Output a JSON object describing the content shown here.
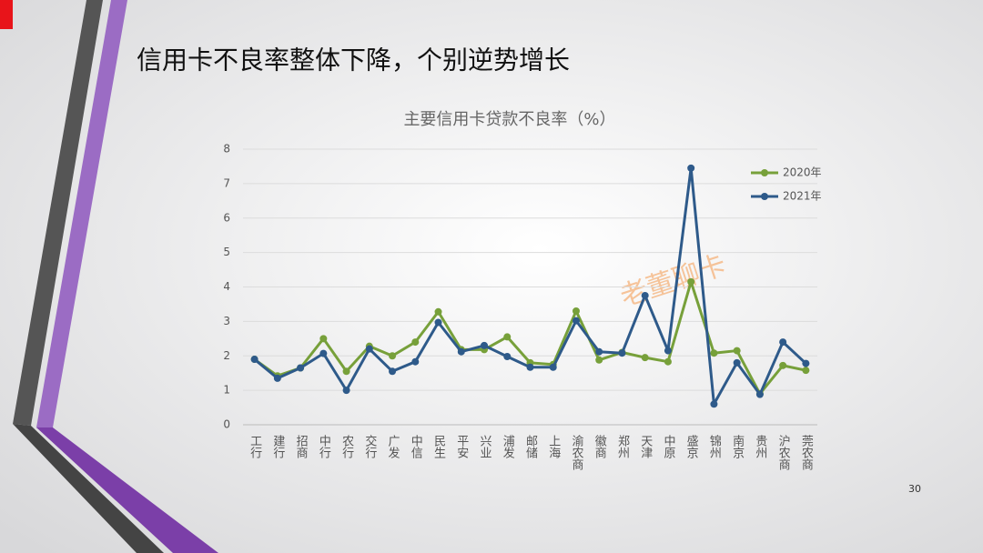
{
  "slide": {
    "title": "信用卡不良率整体下降，个别逆势增长",
    "page_number": "30",
    "watermark": "老董聊卡"
  },
  "chart_data": {
    "type": "line",
    "title": "主要信用卡贷款不良率（%）",
    "categories": [
      "工行",
      "建行",
      "招商",
      "中行",
      "农行",
      "交行",
      "广发",
      "中信",
      "民生",
      "平安",
      "兴业",
      "浦发",
      "邮储",
      "上海",
      "渝农商",
      "徽商",
      "郑州",
      "天津",
      "中原",
      "盛京",
      "锦州",
      "南京",
      "贵州",
      "沪农商",
      "莞农商"
    ],
    "series": [
      {
        "name": "2020年",
        "color": "#77a03a",
        "values": [
          1.9,
          1.42,
          1.65,
          2.5,
          1.55,
          2.28,
          2.0,
          2.4,
          3.28,
          2.18,
          2.18,
          2.55,
          1.8,
          1.75,
          3.3,
          1.88,
          2.1,
          1.95,
          1.83,
          4.15,
          2.08,
          2.15,
          0.9,
          1.72,
          1.58
        ]
      },
      {
        "name": "2021年",
        "color": "#2e5a8a",
        "values": [
          1.9,
          1.35,
          1.65,
          2.07,
          1.0,
          2.2,
          1.55,
          1.83,
          2.97,
          2.12,
          2.3,
          1.98,
          1.67,
          1.67,
          3.02,
          2.12,
          2.08,
          3.75,
          2.15,
          7.45,
          0.6,
          1.8,
          0.88,
          2.4,
          1.78
        ]
      }
    ],
    "ylim": [
      0,
      8
    ],
    "yticks": [
      0,
      1,
      2,
      3,
      4,
      5,
      6,
      7,
      8
    ],
    "grid": true,
    "legend": "top-right"
  }
}
